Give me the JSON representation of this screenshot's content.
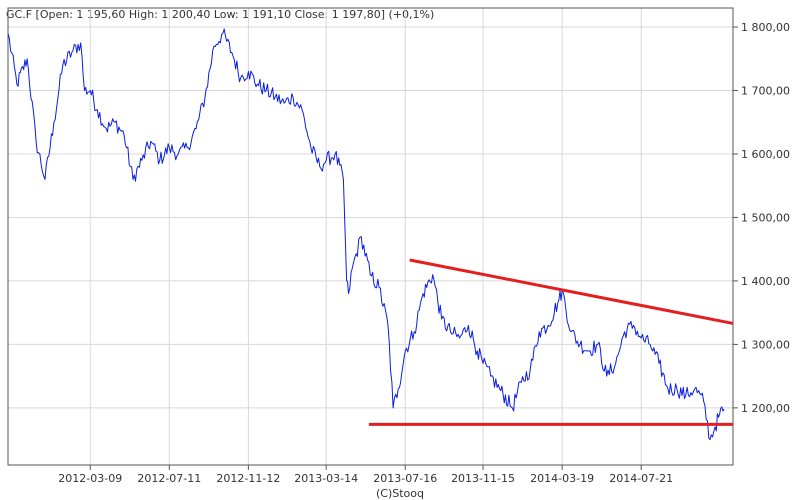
{
  "header": {
    "text": "GC.F [Open: 1 195,60  High: 1 200,40  Low: 1 191,10  Close: 1 197,80]  (+0,1%)"
  },
  "credit": "(C)Stooq",
  "colors": {
    "price_line": "#0a1ee0",
    "trend_line": "#e41e1e",
    "grid": "#d8d8d8",
    "axis": "#555555"
  },
  "chart_data": {
    "type": "line",
    "symbol": "GC.F",
    "x_ticks": [
      "2012-03-09",
      "2012-07-11",
      "2012-11-12",
      "2013-03-14",
      "2013-07-16",
      "2013-11-15",
      "2014-03-19",
      "2014-07-21"
    ],
    "y_ticks": [
      "1 800,00",
      "1 700,00",
      "1 600,00",
      "1 500,00",
      "1 400,00",
      "1 300,00",
      "1 200,00"
    ],
    "ylim": [
      1110,
      1830
    ],
    "xlim": [
      "2011-11-01",
      "2014-12-12"
    ],
    "series": [
      {
        "x": [
          "2011-11-01",
          "2011-11-15",
          "2011-12-01",
          "2011-12-15",
          "2011-12-29",
          "2012-01-12",
          "2012-01-26",
          "2012-02-09",
          "2012-02-23",
          "2012-02-29",
          "2012-03-09",
          "2012-03-20",
          "2012-04-03",
          "2012-04-17",
          "2012-05-01",
          "2012-05-15",
          "2012-05-29",
          "2012-06-12",
          "2012-06-26",
          "2012-07-11",
          "2012-07-25",
          "2012-08-08",
          "2012-08-22",
          "2012-09-05",
          "2012-09-19",
          "2012-10-03",
          "2012-10-17",
          "2012-10-31",
          "2012-11-12",
          "2012-11-26",
          "2012-12-10",
          "2012-12-24",
          "2013-01-07",
          "2013-01-21",
          "2013-02-04",
          "2013-02-18",
          "2013-03-04",
          "2013-03-14",
          "2013-03-28",
          "2013-04-10",
          "2013-04-15",
          "2013-04-18",
          "2013-04-24",
          "2013-05-08",
          "2013-05-22",
          "2013-06-05",
          "2013-06-19",
          "2013-06-27",
          "2013-07-05",
          "2013-07-16",
          "2013-07-30",
          "2013-08-13",
          "2013-08-28",
          "2013-09-11",
          "2013-09-25",
          "2013-10-09",
          "2013-10-23",
          "2013-11-06",
          "2013-11-15",
          "2013-11-27",
          "2013-12-11",
          "2013-12-31",
          "2014-01-14",
          "2014-01-28",
          "2014-02-11",
          "2014-02-25",
          "2014-03-14",
          "2014-03-19",
          "2014-04-02",
          "2014-04-16",
          "2014-04-30",
          "2014-05-14",
          "2014-05-28",
          "2014-06-11",
          "2014-06-25",
          "2014-07-09",
          "2014-07-21",
          "2014-08-04",
          "2014-08-18",
          "2014-09-01",
          "2014-09-15",
          "2014-09-29",
          "2014-10-13",
          "2014-10-27",
          "2014-11-06",
          "2014-11-14",
          "2014-11-21",
          "2014-11-28"
        ],
        "y": [
          1790,
          1710,
          1750,
          1620,
          1560,
          1650,
          1740,
          1760,
          1775,
          1700,
          1700,
          1670,
          1640,
          1650,
          1630,
          1560,
          1590,
          1620,
          1590,
          1610,
          1600,
          1610,
          1640,
          1690,
          1770,
          1790,
          1760,
          1720,
          1730,
          1710,
          1700,
          1690,
          1680,
          1690,
          1670,
          1610,
          1580,
          1590,
          1600,
          1560,
          1400,
          1380,
          1420,
          1470,
          1410,
          1390,
          1330,
          1200,
          1230,
          1290,
          1320,
          1380,
          1410,
          1340,
          1320,
          1310,
          1330,
          1290,
          1270,
          1250,
          1230,
          1200,
          1240,
          1260,
          1320,
          1330,
          1370,
          1385,
          1320,
          1300,
          1290,
          1300,
          1250,
          1270,
          1320,
          1330,
          1310,
          1300,
          1270,
          1230,
          1230,
          1220,
          1230,
          1210,
          1150,
          1170,
          1190,
          1198
        ]
      }
    ],
    "annotations": [
      {
        "type": "trendline",
        "name": "resistance",
        "points": [
          {
            "x": "2013-07-23",
            "y": 1433
          },
          {
            "x": "2014-12-12",
            "y": 1333
          }
        ]
      },
      {
        "type": "trendline",
        "name": "support",
        "points": [
          {
            "x": "2013-05-20",
            "y": 1174
          },
          {
            "x": "2014-12-12",
            "y": 1174
          }
        ]
      }
    ]
  }
}
